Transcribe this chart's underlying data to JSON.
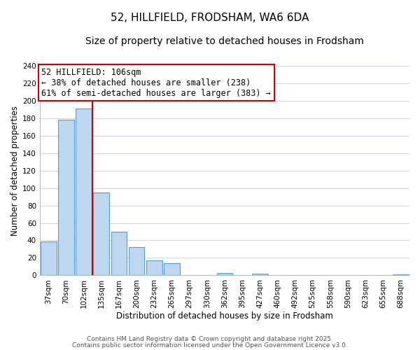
{
  "title": "52, HILLFIELD, FRODSHAM, WA6 6DA",
  "subtitle": "Size of property relative to detached houses in Frodsham",
  "xlabel": "Distribution of detached houses by size in Frodsham",
  "ylabel": "Number of detached properties",
  "bar_labels": [
    "37sqm",
    "70sqm",
    "102sqm",
    "135sqm",
    "167sqm",
    "200sqm",
    "232sqm",
    "265sqm",
    "297sqm",
    "330sqm",
    "362sqm",
    "395sqm",
    "427sqm",
    "460sqm",
    "492sqm",
    "525sqm",
    "558sqm",
    "590sqm",
    "623sqm",
    "655sqm",
    "688sqm"
  ],
  "bar_values": [
    39,
    178,
    191,
    95,
    50,
    32,
    17,
    14,
    0,
    0,
    3,
    0,
    2,
    0,
    0,
    0,
    0,
    0,
    0,
    0,
    1
  ],
  "bar_color": "#bdd7ee",
  "bar_edge_color": "#5b9bd5",
  "vline_x_idx": 2,
  "vline_color": "#cc0000",
  "annotation_line1": "52 HILLFIELD: 106sqm",
  "annotation_line2": "← 38% of detached houses are smaller (238)",
  "annotation_line3": "61% of semi-detached houses are larger (383) →",
  "annotation_box_color": "#ffffff",
  "annotation_box_edge": "#cc0000",
  "ylim": [
    0,
    240
  ],
  "yticks": [
    0,
    20,
    40,
    60,
    80,
    100,
    120,
    140,
    160,
    180,
    200,
    220,
    240
  ],
  "footnote1": "Contains HM Land Registry data © Crown copyright and database right 2025.",
  "footnote2": "Contains public sector information licensed under the Open Government Licence v3.0.",
  "bg_color": "#ffffff",
  "grid_color": "#d0d8e8",
  "title_fontsize": 11,
  "subtitle_fontsize": 10,
  "axis_label_fontsize": 8.5,
  "tick_fontsize": 7.5,
  "annotation_fontsize": 8.5,
  "footnote_fontsize": 6.5
}
